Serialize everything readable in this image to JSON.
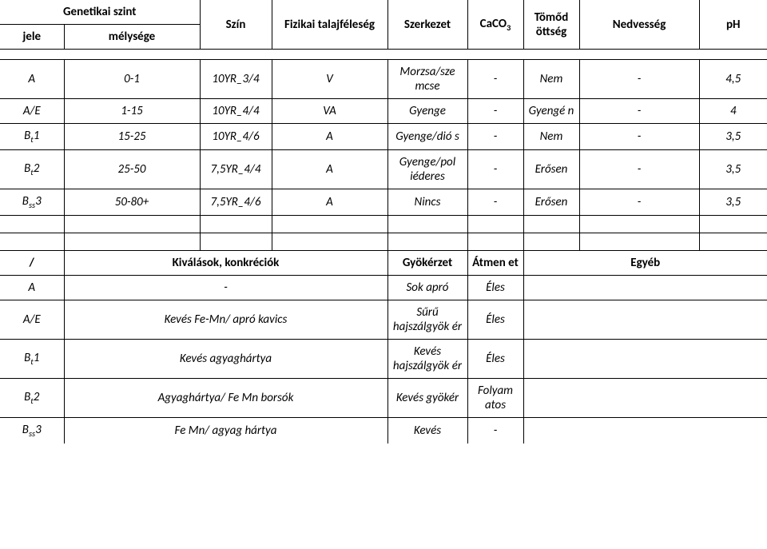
{
  "header": {
    "genetic_level": "Genetikai szint",
    "col_jele": "jele",
    "col_melysege": "mélysége",
    "col_szin": "Szín",
    "col_fizikai": "Fizikai talajféleség",
    "col_szerkezet": "Szerkezet",
    "col_caco3": "CaCO",
    "col_caco3_sub": "3",
    "col_tomod": "Tömőd öttség",
    "col_nedvesseg": "Nedvesség",
    "col_ph": "pH"
  },
  "rows1": [
    {
      "jele": "A",
      "jele_sub": "",
      "melysege": "0-1",
      "szin": "10YR_3/4",
      "fizikai": "V",
      "szerkezet": "Morzsa/sze mcse",
      "caco3": "-",
      "tomod": "Nem",
      "nedv": "-",
      "ph": "4,5"
    },
    {
      "jele": "A/E",
      "jele_sub": "",
      "melysege": "1-15",
      "szin": "10YR_4/4",
      "fizikai": "VA",
      "szerkezet": "Gyenge",
      "caco3": "-",
      "tomod": "Gyengé n",
      "nedv": "-",
      "ph": "4"
    },
    {
      "jele": "B",
      "jele_sub": "t",
      "jele_suffix": "1",
      "melysege": "15-25",
      "szin": "10YR_4/6",
      "fizikai": "A",
      "szerkezet": "Gyenge/dió s",
      "caco3": "-",
      "tomod": "Nem",
      "nedv": "-",
      "ph": "3,5"
    },
    {
      "jele": "B",
      "jele_sub": "t",
      "jele_suffix": "2",
      "melysege": "25-50",
      "szin": "7,5YR_4/4",
      "fizikai": "A",
      "szerkezet": "Gyenge/pol iéderes",
      "caco3": "-",
      "tomod": "Erősen",
      "nedv": "-",
      "ph": "3,5"
    },
    {
      "jele": "B",
      "jele_sub": "ss",
      "jele_suffix": "3",
      "melysege": "50-80+",
      "szin": "7,5YR_4/6",
      "fizikai": "A",
      "szerkezet": "Nincs",
      "caco3": "-",
      "tomod": "Erősen",
      "nedv": "-",
      "ph": "3,5"
    }
  ],
  "header2": {
    "slash": "/",
    "kivalasok": "Kiválások, konkréciók",
    "gyokerzet": "Gyökérzet",
    "atmenet": "Átmen et",
    "egyeb": "Egyéb"
  },
  "rows2": [
    {
      "jele": "A",
      "jele_sub": "",
      "jele_suffix": "",
      "kiv": "-",
      "gyok": "Sok apró",
      "atm": "Éles",
      "egyeb": ""
    },
    {
      "jele": "A/E",
      "jele_sub": "",
      "jele_suffix": "",
      "kiv": "Kevés Fe-Mn/ apró kavics",
      "gyok": "Sűrű hajszálgyök ér",
      "atm": "Éles",
      "egyeb": ""
    },
    {
      "jele": "B",
      "jele_sub": "t",
      "jele_suffix": "1",
      "kiv": "Kevés agyaghártya",
      "gyok": "Kevés hajszálgyök ér",
      "atm": "Éles",
      "egyeb": ""
    },
    {
      "jele": "B",
      "jele_sub": "t",
      "jele_suffix": "2",
      "kiv": "Agyaghártya/ Fe Mn borsók",
      "gyok": "Kevés gyökér",
      "atm": "Folyam atos",
      "egyeb": ""
    },
    {
      "jele": "B",
      "jele_sub": "ss",
      "jele_suffix": "3",
      "kiv": "Fe Mn/ agyag hártya",
      "gyok": "Kevés",
      "atm": "-",
      "egyeb": ""
    }
  ],
  "colwidths": {
    "jele": 80,
    "melysege": 170,
    "szin": 90,
    "fizikai": 145,
    "szerkezet": 100,
    "caco3": 70,
    "tomod": 70,
    "nedvesseg": 150,
    "ph": 85
  },
  "colwidths2": {
    "jele": 80,
    "kiv": 405,
    "gyok": 100,
    "atm": 70,
    "egyeb": 305
  }
}
